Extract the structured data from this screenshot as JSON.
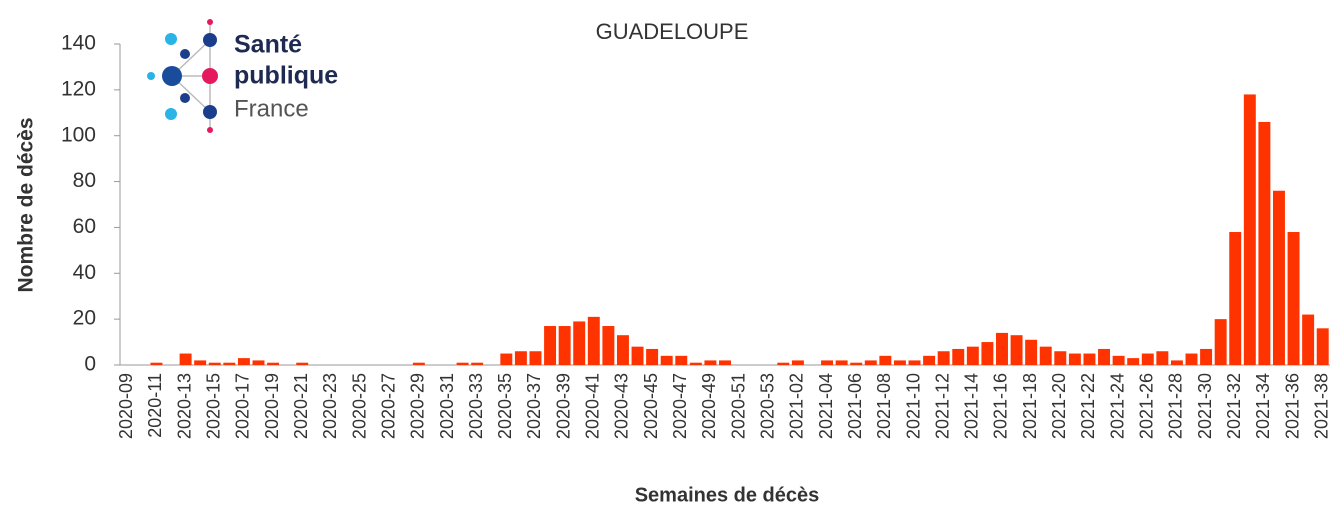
{
  "logo": {
    "lines": [
      "Santé",
      "publique",
      "France"
    ]
  },
  "chart_data": {
    "type": "bar",
    "title": "GUADELOUPE",
    "x_label": "Semaines de décès",
    "y_label": "Nombre de décès",
    "categories": [
      "2020-09",
      null,
      "2020-11",
      null,
      "2020-13",
      null,
      "2020-15",
      null,
      "2020-17",
      null,
      "2020-19",
      null,
      "2020-21",
      null,
      "2020-23",
      null,
      "2020-25",
      null,
      "2020-27",
      null,
      "2020-29",
      null,
      "2020-31",
      null,
      "2020-33",
      null,
      "2020-35",
      null,
      "2020-37",
      null,
      "2020-39",
      null,
      "2020-41",
      null,
      "2020-43",
      null,
      "2020-45",
      null,
      "2020-47",
      null,
      "2020-49",
      null,
      "2020-51",
      null,
      "2020-53",
      null,
      "2021-02",
      null,
      "2021-04",
      null,
      "2021-06",
      null,
      "2021-08",
      null,
      "2021-10",
      null,
      "2021-12",
      null,
      "2021-14",
      null,
      "2021-16",
      null,
      "2021-18",
      null,
      "2021-20",
      null,
      "2021-22",
      null,
      "2021-24",
      null,
      "2021-26",
      null,
      "2021-28",
      null,
      "2021-30",
      null,
      "2021-32",
      null,
      "2021-34",
      null,
      "2021-36",
      null,
      "2021-38"
    ],
    "values": [
      0,
      0,
      1,
      0,
      5,
      2,
      1,
      1,
      3,
      2,
      1,
      0,
      1,
      0,
      0,
      0,
      0,
      0,
      0,
      0,
      1,
      0,
      0,
      1,
      1,
      0,
      5,
      6,
      6,
      17,
      17,
      19,
      21,
      17,
      13,
      8,
      7,
      4,
      4,
      1,
      2,
      2,
      0,
      0,
      0,
      1,
      2,
      0,
      2,
      2,
      1,
      2,
      4,
      2,
      2,
      4,
      6,
      7,
      8,
      10,
      14,
      13,
      11,
      8,
      6,
      5,
      5,
      7,
      4,
      3,
      5,
      6,
      2,
      5,
      7,
      20,
      58,
      118,
      106,
      76,
      58,
      22,
      16
    ],
    "color": "#ff3300",
    "ylim": [
      0,
      140
    ],
    "yticks": [
      0,
      20,
      40,
      60,
      80,
      100,
      120,
      140
    ]
  }
}
